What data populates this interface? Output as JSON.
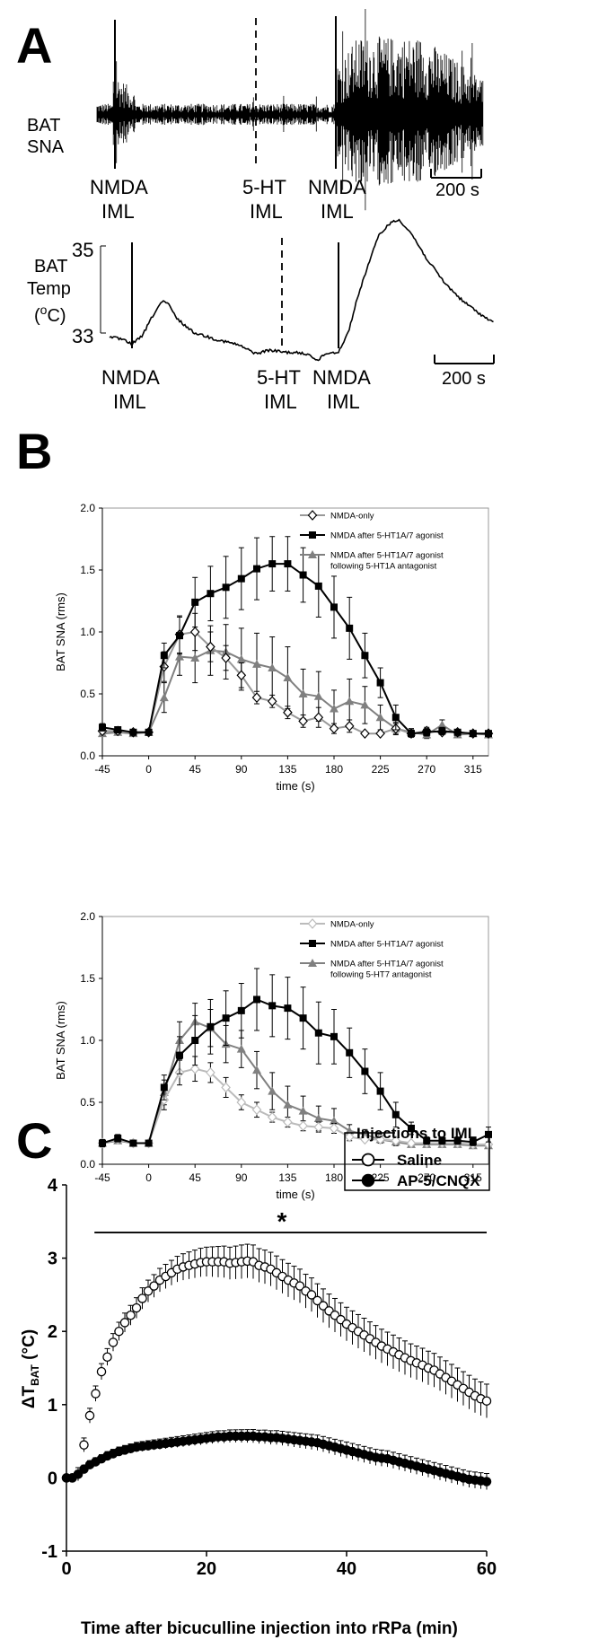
{
  "panel_a": {
    "letter": "A",
    "sna_label_1": "BAT",
    "sna_label_2": "SNA",
    "temp_label_1": "BAT",
    "temp_label_2": "Temp",
    "temp_unit_o": "o",
    "temp_unit_open": "(",
    "temp_unit_c": "C)",
    "temp_tick_high": "35",
    "temp_tick_low": "33",
    "nmda": "NMDA",
    "iml": "IML",
    "ht": "5-HT",
    "scalebar": "200 s"
  },
  "panel_b": {
    "letter": "B"
  },
  "panel_c": {
    "letter": "C",
    "legend_title": "Injections to IML",
    "legend_saline": "Saline",
    "legend_ap5": "AP-5/CNQX",
    "significance": "*",
    "ylabel_delta": "ΔT",
    "ylabel_sub": "BAT",
    "ylabel_unit": " (°C)",
    "xlabel": "Time after bicuculline injection into rRPa (min)"
  },
  "chart_data": [
    {
      "type": "line",
      "id": "B1",
      "ylabel": "BAT SNA (rms)",
      "xlabel": "time (s)",
      "x": [
        -45,
        -30,
        -15,
        0,
        15,
        30,
        45,
        60,
        75,
        90,
        105,
        120,
        135,
        150,
        165,
        180,
        195,
        210,
        225,
        240,
        255,
        270,
        285,
        300,
        315,
        330
      ],
      "xticks": [
        -45,
        0,
        45,
        90,
        135,
        180,
        225,
        270,
        315
      ],
      "yticks": [
        "0.0",
        "0.5",
        "1.0",
        "1.5",
        "2.0"
      ],
      "ylim": [
        0,
        2
      ],
      "xlim": [
        -45,
        330
      ],
      "series": [
        {
          "name": "NMDA-only",
          "values": [
            0.2,
            0.2,
            0.19,
            0.19,
            0.72,
            0.98,
            1.0,
            0.88,
            0.79,
            0.65,
            0.47,
            0.44,
            0.35,
            0.28,
            0.31,
            0.22,
            0.24,
            0.18,
            0.18,
            0.22,
            0.18,
            0.2,
            0.19,
            0.19,
            0.18,
            0.18
          ],
          "err": [
            0.02,
            0.02,
            0.02,
            0.02,
            0.12,
            0.15,
            0.15,
            0.12,
            0.1,
            0.1,
            0.05,
            0.05,
            0.05,
            0.05,
            0.08,
            0.04,
            0.05,
            0.02,
            0.02,
            0.04,
            0.02,
            0.03,
            0.02,
            0.02,
            0.02,
            0.02
          ]
        },
        {
          "name": "NMDA after 5-HT1A/7 agonist",
          "values": [
            0.23,
            0.21,
            0.19,
            0.19,
            0.81,
            0.97,
            1.24,
            1.31,
            1.36,
            1.43,
            1.51,
            1.55,
            1.55,
            1.46,
            1.37,
            1.2,
            1.03,
            0.81,
            0.59,
            0.31,
            0.18,
            0.19,
            0.2,
            0.19,
            0.18,
            0.18
          ],
          "err": [
            0.03,
            0.02,
            0.02,
            0.02,
            0.1,
            0.15,
            0.2,
            0.22,
            0.25,
            0.25,
            0.25,
            0.22,
            0.22,
            0.22,
            0.25,
            0.25,
            0.25,
            0.18,
            0.12,
            0.1,
            0.03,
            0.03,
            0.03,
            0.02,
            0.02,
            0.02
          ]
        },
        {
          "name": "NMDA after 5-HT1A/7 agonist following 5-HT1A antagonist",
          "values": [
            0.18,
            0.19,
            0.18,
            0.19,
            0.47,
            0.8,
            0.79,
            0.85,
            0.84,
            0.78,
            0.74,
            0.71,
            0.63,
            0.5,
            0.48,
            0.38,
            0.44,
            0.41,
            0.31,
            0.22,
            0.19,
            0.17,
            0.25,
            0.17,
            0.18,
            0.17
          ],
          "err": [
            0.02,
            0.02,
            0.02,
            0.02,
            0.12,
            0.15,
            0.2,
            0.2,
            0.22,
            0.25,
            0.25,
            0.25,
            0.25,
            0.2,
            0.2,
            0.15,
            0.18,
            0.15,
            0.1,
            0.05,
            0.03,
            0.03,
            0.04,
            0.02,
            0.02,
            0.02
          ]
        }
      ]
    },
    {
      "type": "line",
      "id": "B2",
      "ylabel": "BAT SNA (rms)",
      "xlabel": "time (s)",
      "x": [
        -45,
        -30,
        -15,
        0,
        15,
        30,
        45,
        60,
        75,
        90,
        105,
        120,
        135,
        150,
        165,
        180,
        195,
        210,
        225,
        240,
        255,
        270,
        285,
        300,
        315,
        330
      ],
      "xticks": [
        -45,
        0,
        45,
        90,
        135,
        180,
        225,
        270,
        315
      ],
      "yticks": [
        "0.0",
        "0.5",
        "1.0",
        "1.5",
        "2.0"
      ],
      "ylim": [
        0,
        2
      ],
      "xlim": [
        -45,
        330
      ],
      "series": [
        {
          "name": "NMDA-only",
          "values": [
            0.17,
            0.2,
            0.17,
            0.17,
            0.52,
            0.74,
            0.77,
            0.74,
            0.62,
            0.5,
            0.44,
            0.38,
            0.34,
            0.31,
            0.3,
            0.29,
            0.22,
            0.2,
            0.2,
            0.19,
            0.17,
            0.17,
            0.17,
            0.17,
            0.16,
            0.16
          ],
          "err": [
            0.02,
            0.02,
            0.02,
            0.02,
            0.08,
            0.1,
            0.1,
            0.08,
            0.08,
            0.06,
            0.06,
            0.04,
            0.04,
            0.04,
            0.04,
            0.04,
            0.03,
            0.02,
            0.02,
            0.02,
            0.02,
            0.02,
            0.02,
            0.02,
            0.02,
            0.02
          ]
        },
        {
          "name": "NMDA after 5-HT1A/7 agonist",
          "values": [
            0.17,
            0.21,
            0.17,
            0.17,
            0.62,
            0.88,
            1.0,
            1.11,
            1.18,
            1.24,
            1.33,
            1.28,
            1.26,
            1.18,
            1.06,
            1.03,
            0.9,
            0.75,
            0.59,
            0.4,
            0.29,
            0.19,
            0.19,
            0.19,
            0.18,
            0.24
          ],
          "err": [
            0.03,
            0.03,
            0.02,
            0.02,
            0.1,
            0.15,
            0.2,
            0.22,
            0.22,
            0.22,
            0.25,
            0.25,
            0.25,
            0.25,
            0.25,
            0.22,
            0.2,
            0.18,
            0.15,
            0.1,
            0.05,
            0.03,
            0.03,
            0.03,
            0.03,
            0.06
          ]
        },
        {
          "name": "NMDA after 5-HT1A/7 agonist following 5-HT7 antagonist",
          "values": [
            0.17,
            0.19,
            0.17,
            0.17,
            0.58,
            1.0,
            1.15,
            1.1,
            0.97,
            0.93,
            0.76,
            0.59,
            0.48,
            0.43,
            0.37,
            0.35,
            0.27,
            0.24,
            0.2,
            0.18,
            0.16,
            0.16,
            0.16,
            0.16,
            0.15,
            0.15
          ],
          "err": [
            0.02,
            0.02,
            0.02,
            0.02,
            0.1,
            0.15,
            0.15,
            0.15,
            0.15,
            0.15,
            0.15,
            0.15,
            0.15,
            0.12,
            0.1,
            0.1,
            0.05,
            0.04,
            0.03,
            0.03,
            0.02,
            0.02,
            0.02,
            0.02,
            0.02,
            0.02
          ]
        }
      ]
    },
    {
      "type": "scatter",
      "id": "C",
      "xlabel": "Time after bicuculline injection into rRPa (min)",
      "ylabel": "ΔTBAT (°C)",
      "xlim": [
        0,
        60
      ],
      "ylim": [
        -1,
        4
      ],
      "xticks": [
        0,
        20,
        40,
        60
      ],
      "yticks": [
        -1,
        0,
        1,
        2,
        3,
        4
      ],
      "significance_bar": {
        "x": [
          4,
          60
        ],
        "y": 3.35,
        "label": "*"
      },
      "series": [
        {
          "name": "Saline",
          "values": [
            0,
            0,
            0.05,
            0.45,
            0.85,
            1.15,
            1.45,
            1.65,
            1.85,
            2.0,
            2.12,
            2.22,
            2.32,
            2.45,
            2.55,
            2.62,
            2.7,
            2.75,
            2.8,
            2.85,
            2.88,
            2.9,
            2.92,
            2.94,
            2.95,
            2.95,
            2.95,
            2.95,
            2.93,
            2.94,
            2.95,
            2.96,
            2.95,
            2.9,
            2.88,
            2.85,
            2.8,
            2.75,
            2.7,
            2.66,
            2.62,
            2.55,
            2.5,
            2.42,
            2.35,
            2.28,
            2.22,
            2.16,
            2.1,
            2.05,
            2.0,
            1.95,
            1.9,
            1.85,
            1.8,
            1.76,
            1.72,
            1.68,
            1.64,
            1.6,
            1.57,
            1.54,
            1.5,
            1.47,
            1.42,
            1.37,
            1.32,
            1.27,
            1.22,
            1.17,
            1.12,
            1.08,
            1.05
          ]
        },
        {
          "name": "AP-5/CNQX",
          "values": [
            0,
            0,
            0.05,
            0.12,
            0.18,
            0.22,
            0.26,
            0.3,
            0.33,
            0.36,
            0.38,
            0.4,
            0.42,
            0.43,
            0.44,
            0.45,
            0.46,
            0.47,
            0.48,
            0.49,
            0.5,
            0.51,
            0.52,
            0.53,
            0.54,
            0.55,
            0.56,
            0.56,
            0.57,
            0.57,
            0.57,
            0.57,
            0.57,
            0.56,
            0.56,
            0.55,
            0.55,
            0.54,
            0.53,
            0.52,
            0.51,
            0.5,
            0.49,
            0.48,
            0.46,
            0.44,
            0.42,
            0.4,
            0.38,
            0.36,
            0.34,
            0.32,
            0.3,
            0.28,
            0.27,
            0.26,
            0.24,
            0.22,
            0.2,
            0.18,
            0.16,
            0.14,
            0.12,
            0.1,
            0.08,
            0.06,
            0.04,
            0.02,
            0.0,
            -0.02,
            -0.03,
            -0.04,
            -0.05
          ]
        }
      ]
    }
  ]
}
